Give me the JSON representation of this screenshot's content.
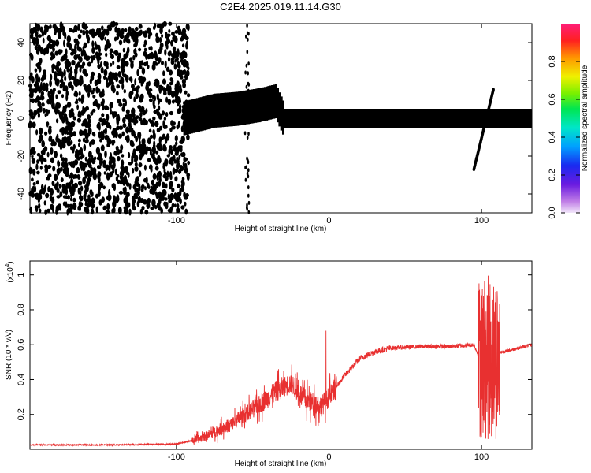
{
  "title": "C2E4.2025.019.11.14.G30",
  "chart_data": [
    {
      "type": "heatmap",
      "name": "spectrogram",
      "xlabel": "Height of straight line (km)",
      "ylabel": "Frequency (Hz)",
      "xlim": [
        -196,
        133
      ],
      "ylim": [
        -50,
        50
      ],
      "xticks": [
        -100,
        0,
        100
      ],
      "yticks": [
        -40,
        -20,
        0,
        20,
        40
      ],
      "colorbar": {
        "label": "Normalized spectral amplitude",
        "range": [
          0,
          1
        ],
        "ticks": [
          "0.0",
          "0.2",
          "0.4",
          "0.6",
          "0.8"
        ]
      },
      "features": {
        "noise_region_x": [
          -196,
          -92
        ],
        "main_signal": [
          {
            "x": -95,
            "f": 0,
            "a": 0.35
          },
          {
            "x": -85,
            "f": 2,
            "a": 0.45
          },
          {
            "x": -75,
            "f": 4,
            "a": 0.5
          },
          {
            "x": -60,
            "f": 5,
            "a": 0.45
          },
          {
            "x": -45,
            "f": 7,
            "a": 0.45
          },
          {
            "x": -35,
            "f": 9,
            "a": 0.4
          },
          {
            "x": -30,
            "f": 0,
            "a": 0.85
          },
          {
            "x": 0,
            "f": 0,
            "a": 0.95
          },
          {
            "x": 40,
            "f": 0,
            "a": 0.7
          },
          {
            "x": 80,
            "f": 0,
            "a": 0.9
          },
          {
            "x": 100,
            "f": 0,
            "a": 0.5
          },
          {
            "x": 133,
            "f": 0,
            "a": 0.5
          }
        ],
        "diagonal_streak": [
          [
            95,
            -27
          ],
          [
            108,
            16
          ]
        ]
      }
    },
    {
      "type": "line",
      "name": "snr",
      "xlabel": "Height of straight line (km)",
      "ylabel": "SNR (10 * v/v)",
      "y_scale_note": "(x10",
      "y_scale_exp": "4",
      "xlim": [
        -196,
        133
      ],
      "ylim": [
        0,
        1.08
      ],
      "xticks": [
        -100,
        0,
        100
      ],
      "yticks": [
        0.2,
        0.4,
        0.6,
        0.8,
        1.0
      ],
      "series": [
        {
          "color": "#e83030",
          "x": [
            -196,
            -150,
            -100,
            -85,
            -75,
            -65,
            -55,
            -45,
            -35,
            -25,
            -15,
            -5,
            0,
            10,
            20,
            30,
            40,
            60,
            80,
            95,
            100,
            105,
            110,
            133
          ],
          "y": [
            0.025,
            0.025,
            0.03,
            0.06,
            0.1,
            0.14,
            0.2,
            0.26,
            0.33,
            0.38,
            0.28,
            0.25,
            0.3,
            0.42,
            0.52,
            0.56,
            0.58,
            0.59,
            0.59,
            0.6,
            0.5,
            0.3,
            0.55,
            0.6
          ],
          "spikes": [
            {
              "x": -33,
              "y": 0.46
            },
            {
              "x": -25,
              "y": 0.42
            },
            {
              "x": -2,
              "y": 0.68
            },
            {
              "x": 103,
              "y": 1.07
            },
            {
              "x": 105,
              "y": 0.05
            },
            {
              "x": 109,
              "y": 1.0
            }
          ]
        }
      ]
    }
  ]
}
